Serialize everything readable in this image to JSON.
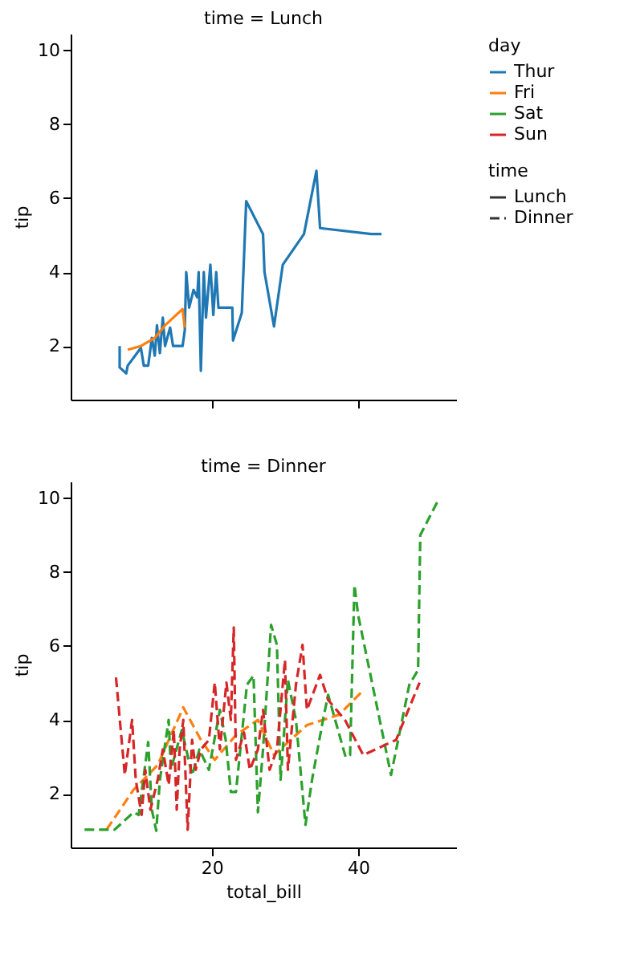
{
  "chart_data": [
    {
      "type": "line",
      "title": "time = Lunch",
      "ylabel": "tip",
      "legend_title": "day",
      "legend": "right",
      "line_style": "solid",
      "annotations": [
        "Lunch"
      ],
      "tick_labels": "y",
      "grid": false,
      "xlim": [
        0.7,
        53.4
      ],
      "xticks": [
        {
          "value": 20,
          "label": null
        },
        {
          "value": 40,
          "label": null
        }
      ],
      "ylim": [
        0.55,
        10.45
      ],
      "yticks": [
        2,
        4,
        6,
        8,
        10
      ],
      "series": [
        {
          "name": "Thur",
          "color": "#1f77b4",
          "x": [
            7.4,
            7.4,
            8.3,
            8.5,
            10.3,
            10.7,
            11.3,
            11.8,
            12.2,
            12.5,
            12.9,
            13.3,
            13.6,
            14.3,
            14.7,
            16.0,
            16.3,
            16.5,
            16.9,
            17.5,
            18.0,
            18.2,
            18.5,
            18.9,
            19.2,
            19.8,
            20.2,
            20.6,
            20.9,
            22.8,
            22.9,
            24.1,
            24.7,
            27.0,
            27.2,
            28.5,
            29.7,
            32.6,
            34.3,
            34.8,
            41.8,
            43.2
          ],
          "values": [
            2.0,
            1.42,
            1.26,
            1.47,
            1.95,
            1.47,
            1.47,
            2.22,
            1.74,
            2.56,
            1.81,
            2.77,
            2.0,
            2.5,
            2.0,
            2.0,
            2.42,
            4.0,
            3.04,
            3.52,
            3.32,
            4.0,
            1.33,
            4.0,
            2.77,
            4.2,
            2.84,
            4.0,
            3.04,
            3.04,
            2.15,
            2.9,
            5.92,
            5.03,
            4.0,
            2.53,
            4.2,
            5.03,
            6.74,
            5.19,
            5.03,
            5.03
          ]
        },
        {
          "name": "Fri",
          "color": "#ff7f0e",
          "x": [
            8.5,
            10.3,
            12.2,
            13.6,
            16.0,
            16.3
          ],
          "values": [
            1.9,
            2.0,
            2.22,
            2.56,
            3.0,
            2.5
          ]
        }
      ]
    },
    {
      "type": "line",
      "title": "time = Dinner",
      "xlabel": "total_bill",
      "ylabel": "tip",
      "legend_title": "time",
      "legend": "right",
      "line_style": "dashed",
      "annotations": [
        "Dinner"
      ],
      "grid": false,
      "xlim": [
        0.7,
        53.4
      ],
      "xticks": [
        20,
        40
      ],
      "ylim": [
        0.55,
        10.45
      ],
      "yticks": [
        2,
        4,
        6,
        8,
        10
      ],
      "series": [
        {
          "name": "Fri",
          "color": "#ff7f0e",
          "x": [
            5.6,
            9.3,
            12.6,
            16.1,
            18.5,
            20.4,
            23.3,
            26.3,
            28.5,
            33.0,
            37.4,
            40.4
          ],
          "values": [
            1.03,
            2.11,
            2.78,
            4.34,
            3.46,
            2.92,
            3.59,
            4.0,
            3.05,
            3.86,
            4.14,
            4.74
          ]
        },
        {
          "name": "Sat",
          "color": "#2ca02c",
          "x": [
            2.6,
            6.7,
            9.3,
            10.0,
            11.3,
            11.8,
            12.4,
            12.9,
            14.1,
            14.4,
            15.9,
            17.3,
            18.3,
            19.6,
            21.1,
            21.9,
            22.6,
            23.3,
            24.8,
            25.7,
            26.3,
            27.0,
            28.1,
            28.9,
            29.4,
            30.4,
            31.5,
            32.8,
            33.7,
            35.2,
            35.9,
            38.3,
            38.9,
            39.5,
            40.0,
            44.5,
            47.0,
            48.2,
            48.5,
            51.1
          ],
          "values": [
            1.03,
            1.03,
            1.5,
            1.43,
            3.4,
            1.57,
            1.0,
            2.38,
            4.0,
            2.65,
            3.73,
            2.5,
            3.2,
            2.65,
            4.27,
            3.46,
            2.05,
            2.05,
            4.95,
            5.2,
            1.5,
            3.2,
            6.57,
            6.03,
            2.38,
            5.08,
            4.0,
            1.16,
            2.38,
            4.0,
            4.68,
            2.99,
            3.05,
            7.65,
            6.84,
            2.51,
            4.95,
            5.35,
            9.0,
            10.0
          ]
        },
        {
          "name": "Sun",
          "color": "#d62728",
          "x": [
            6.9,
            8.1,
            9.1,
            9.6,
            10.4,
            10.9,
            11.6,
            12.6,
            13.3,
            14.1,
            14.8,
            15.2,
            15.6,
            16.1,
            16.7,
            17.3,
            17.8,
            18.5,
            19.6,
            20.4,
            21.1,
            22.0,
            22.6,
            23.0,
            23.3,
            24.4,
            25.2,
            26.3,
            27.0,
            27.9,
            28.9,
            30.0,
            30.4,
            31.5,
            32.4,
            33.0,
            34.8,
            35.9,
            38.2,
            40.7,
            45.2,
            48.4
          ],
          "values": [
            5.15,
            2.51,
            4.0,
            2.38,
            1.43,
            2.65,
            1.57,
            2.38,
            3.2,
            2.24,
            3.73,
            1.57,
            3.2,
            4.0,
            1.03,
            3.46,
            2.65,
            3.2,
            3.46,
            5.01,
            3.2,
            5.01,
            4.0,
            6.5,
            2.92,
            3.66,
            2.65,
            3.2,
            4.27,
            2.65,
            3.2,
            5.62,
            2.65,
            4.95,
            6.03,
            4.27,
            5.22,
            4.54,
            4.0,
            3.05,
            3.46,
            5.01
          ]
        }
      ]
    }
  ]
}
